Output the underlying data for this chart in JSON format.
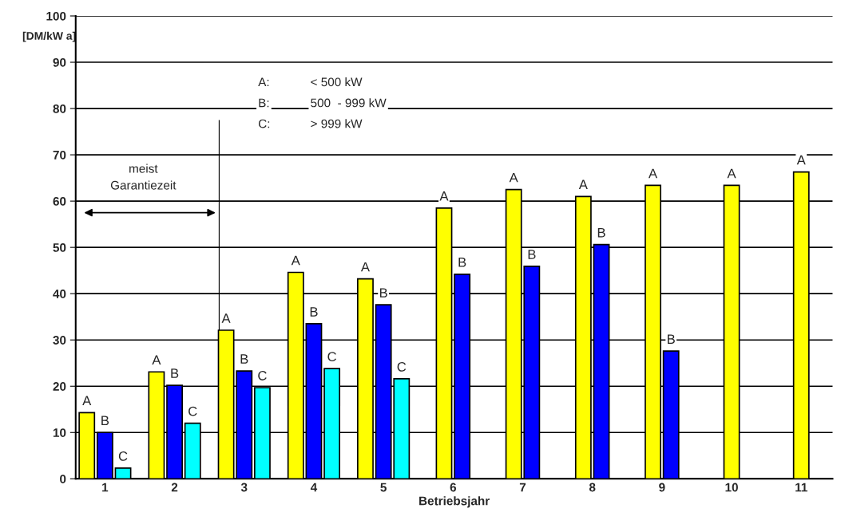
{
  "chart_data": {
    "type": "bar",
    "categories": [
      "1",
      "2",
      "3",
      "4",
      "5",
      "6",
      "7",
      "8",
      "9",
      "10",
      "11"
    ],
    "series": [
      {
        "name": "A",
        "color": "#ffff00",
        "values": [
          14.3,
          23.1,
          32.1,
          44.6,
          43.2,
          58.5,
          62.5,
          61.0,
          63.4,
          63.4,
          66.3
        ]
      },
      {
        "name": "B",
        "color": "#0000ff",
        "values": [
          10.0,
          20.2,
          23.3,
          33.5,
          37.6,
          44.2,
          45.9,
          50.6,
          27.6,
          null,
          null
        ]
      },
      {
        "name": "C",
        "color": "#00ffff",
        "values": [
          2.3,
          12.0,
          19.7,
          23.8,
          21.6,
          null,
          null,
          null,
          null,
          null,
          null
        ]
      }
    ],
    "xlabel": "Betriebsjahr",
    "ylabel": "[DM/kW a]",
    "ylim": [
      0,
      100
    ],
    "yticks": [
      0,
      10,
      20,
      30,
      40,
      50,
      60,
      70,
      80,
      90,
      100
    ],
    "grid": "y",
    "annotations": [
      "A:",
      "< 500 kW",
      "B:",
      "500  - 999 kW",
      "C:",
      "> 999 kW",
      "meist\nGarantiezeit"
    ]
  }
}
